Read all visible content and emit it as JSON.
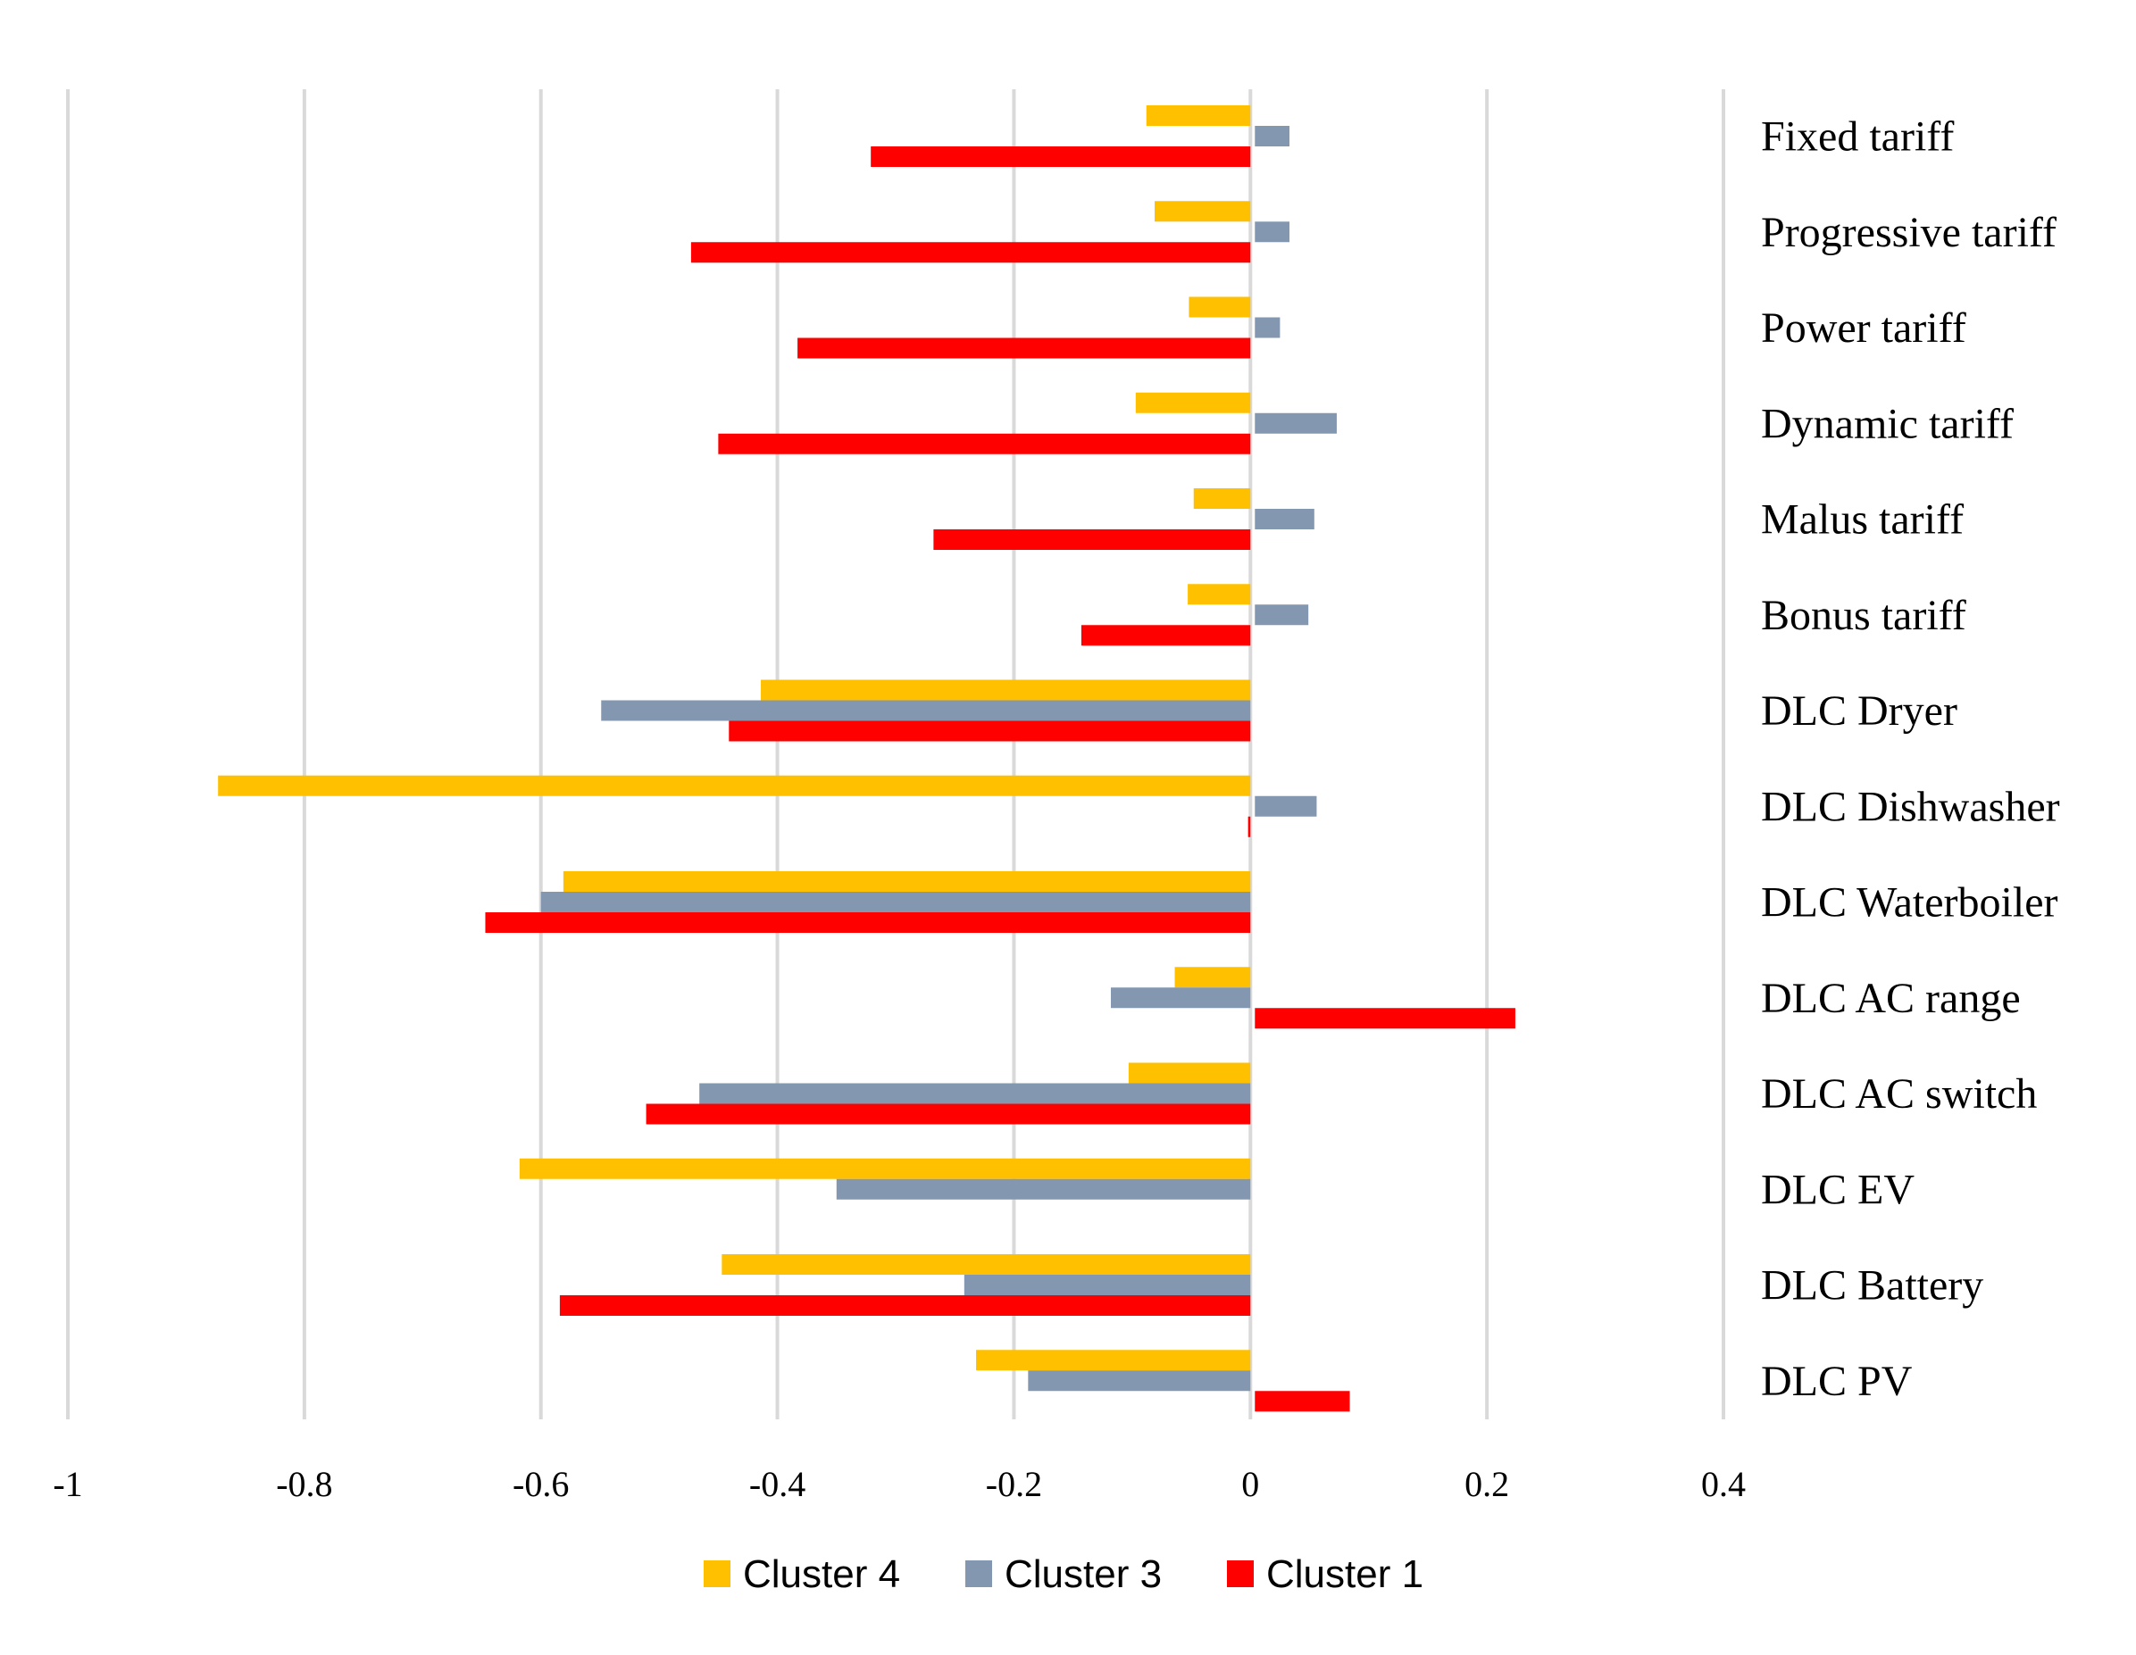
{
  "chart_data": {
    "type": "bar",
    "orientation": "horizontal",
    "title": "",
    "xlabel": "",
    "ylabel": "",
    "xlim": [
      -1,
      0.4
    ],
    "xticks": [
      -1,
      -0.8,
      -0.6,
      -0.4,
      -0.2,
      0,
      0.2,
      0.4
    ],
    "xtick_labels": [
      "-1",
      "-0.8",
      "-0.6",
      "-0.4",
      "-0.2",
      "0",
      "0.2",
      "0.4"
    ],
    "grid": true,
    "legend_position": "bottom",
    "categories": [
      "Fixed tariff",
      "Progressive tariff",
      "Power tariff",
      "Dynamic tariff",
      "Malus tariff",
      "Bonus tariff",
      "DLC Dryer",
      "DLC Dishwasher",
      "DLC Waterboiler",
      "DLC AC range",
      "DLC AC switch",
      "DLC EV",
      "DLC Battery",
      "DLC PV"
    ],
    "series": [
      {
        "name": "Cluster 4",
        "color": "#FFC000",
        "values": [
          -0.088,
          -0.081,
          -0.052,
          -0.097,
          -0.048,
          -0.053,
          -0.414,
          -0.873,
          -0.581,
          -0.064,
          -0.103,
          -0.618,
          -0.447,
          -0.232
        ]
      },
      {
        "name": "Cluster 3",
        "color": "#8497B0",
        "values": [
          0.033,
          0.033,
          0.025,
          0.073,
          0.054,
          0.049,
          -0.549,
          0.056,
          -0.6,
          -0.118,
          -0.466,
          -0.35,
          -0.242,
          -0.188
        ]
      },
      {
        "name": "Cluster 1",
        "color": "#FF0000",
        "values": [
          -0.321,
          -0.473,
          -0.383,
          -0.45,
          -0.268,
          -0.143,
          -0.441,
          -0.002,
          -0.647,
          0.224,
          -0.511,
          0,
          -0.584,
          0.084
        ]
      }
    ]
  }
}
